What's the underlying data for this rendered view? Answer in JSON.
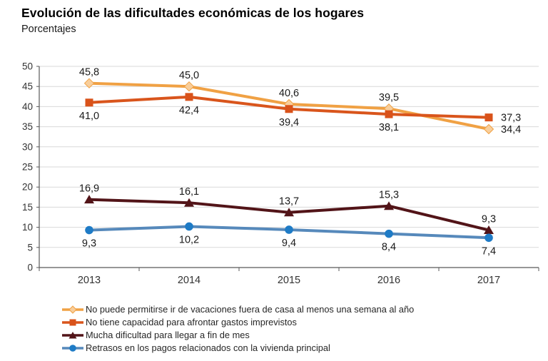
{
  "header": {
    "title": "Evolución de las dificultades económicas de los hogares",
    "subtitle": "Porcentajes"
  },
  "chart_data": {
    "type": "line",
    "title": "Evolución de las dificultades económicas de los hogares",
    "subtitle": "Porcentajes",
    "categories": [
      "2013",
      "2014",
      "2015",
      "2016",
      "2017"
    ],
    "ylim": [
      0,
      50
    ],
    "ytick_step": 5,
    "ytick_labels": [
      "0",
      "5",
      "10",
      "15",
      "20",
      "25",
      "30",
      "35",
      "40",
      "45",
      "50"
    ],
    "grid": true,
    "legend_position": "bottom-left",
    "decimal_separator": ",",
    "series": [
      {
        "name": "No puede permitirse ir de vacaciones fuera de casa al menos una semana al año",
        "values": [
          45.8,
          45.0,
          40.6,
          39.5,
          34.4
        ],
        "labels": [
          "45,8",
          "45,0",
          "40,6",
          "39,5",
          "34,4"
        ],
        "line_color": "#F0A144",
        "marker_color": "#F8CE9B",
        "marker": "diamond",
        "label_positions": [
          "above",
          "above",
          "above",
          "above",
          "right"
        ]
      },
      {
        "name": "No tiene capacidad para afrontar gastos imprevistos",
        "values": [
          41.0,
          42.4,
          39.4,
          38.1,
          37.3
        ],
        "labels": [
          "41,0",
          "42,4",
          "39,4",
          "38,1",
          "37,3"
        ],
        "line_color": "#D9551C",
        "marker_color": "#D9521A",
        "marker": "square",
        "label_positions": [
          "below",
          "below",
          "below",
          "below",
          "right"
        ]
      },
      {
        "name": "Mucha dificultad para llegar a fin de mes",
        "values": [
          16.9,
          16.1,
          13.7,
          15.3,
          9.3
        ],
        "labels": [
          "16,9",
          "16,1",
          "13,7",
          "15,3",
          "9,3"
        ],
        "line_color": "#521418",
        "marker_color": "#521418",
        "marker": "triangle",
        "label_positions": [
          "above",
          "above",
          "above",
          "above",
          "above"
        ]
      },
      {
        "name": "Retrasos en los pagos relacionados con la vivienda principal",
        "values": [
          9.3,
          10.2,
          9.4,
          8.4,
          7.4
        ],
        "labels": [
          "9,3",
          "10,2",
          "9,4",
          "8,4",
          "7,4"
        ],
        "line_color": "#5689BB",
        "marker_color": "#1E7BC6",
        "marker": "circle",
        "label_positions": [
          "below",
          "below",
          "below",
          "below",
          "below"
        ]
      }
    ]
  },
  "style_colors": {
    "axis": "#595959",
    "gridline": "#D9D9D9",
    "tick_text": "#333333",
    "data_label_text": "#1a1a1a"
  }
}
